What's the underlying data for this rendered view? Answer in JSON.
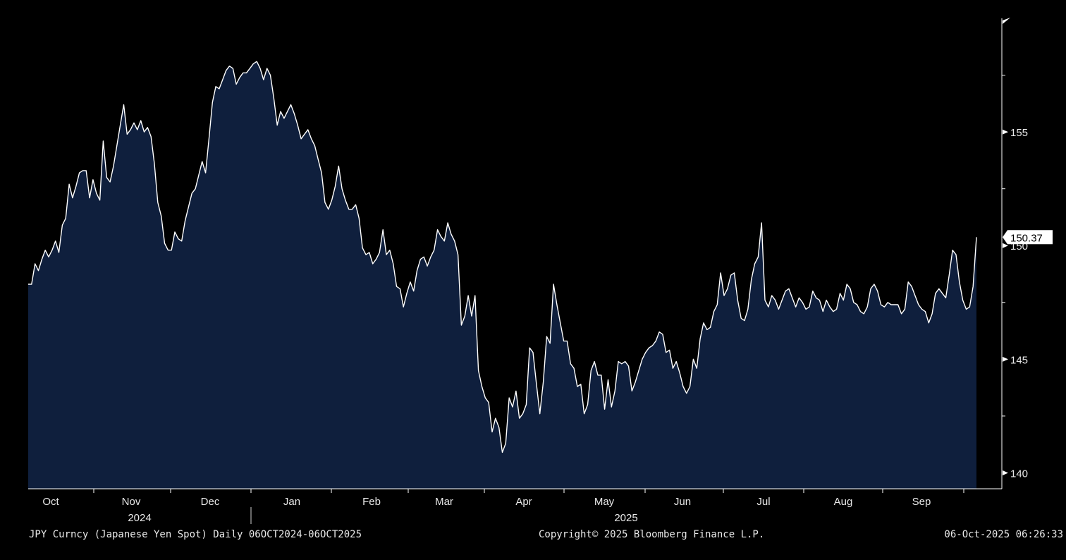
{
  "chart_data": {
    "type": "area",
    "series": [
      {
        "values": [
          148.3,
          148.3,
          149.2,
          148.9,
          149.4,
          149.8,
          149.5,
          149.8,
          150.2,
          149.7,
          150.9,
          151.2,
          152.7,
          152.1,
          152.6,
          153.2,
          153.3,
          153.3,
          152.1,
          152.9,
          152.3,
          152.0,
          154.6,
          153.0,
          152.8,
          153.5,
          154.4,
          155.3,
          156.2,
          154.9,
          155.1,
          155.4,
          155.1,
          155.5,
          155.0,
          155.2,
          154.8,
          153.6,
          151.9,
          151.3,
          150.1,
          149.8,
          149.8,
          150.6,
          150.3,
          150.2,
          151.1,
          151.7,
          152.3,
          152.5,
          153.1,
          153.7,
          153.2,
          154.7,
          156.3,
          157.0,
          156.9,
          157.3,
          157.7,
          157.9,
          157.8,
          157.1,
          157.4,
          157.6,
          157.6,
          157.8,
          158.0,
          158.1,
          157.8,
          157.3,
          157.8,
          157.5,
          156.5,
          155.3,
          155.9,
          155.6,
          155.9,
          156.2,
          155.8,
          155.3,
          154.7,
          154.9,
          155.1,
          154.7,
          154.4,
          153.8,
          153.2,
          151.9,
          151.6,
          152.0,
          152.6,
          153.5,
          152.5,
          152.0,
          151.6,
          151.6,
          151.8,
          151.2,
          149.9,
          149.6,
          149.7,
          149.2,
          149.4,
          149.7,
          150.7,
          149.6,
          149.8,
          149.2,
          148.2,
          148.1,
          147.3,
          147.9,
          148.4,
          148.0,
          148.9,
          149.4,
          149.5,
          149.1,
          149.5,
          149.8,
          150.7,
          150.4,
          150.2,
          151.0,
          150.5,
          150.2,
          149.6,
          146.5,
          146.9,
          147.8,
          146.9,
          147.8,
          144.5,
          143.8,
          143.3,
          143.1,
          141.8,
          142.4,
          142.0,
          140.9,
          141.3,
          143.3,
          142.9,
          143.6,
          142.4,
          142.6,
          143.0,
          145.5,
          145.3,
          143.9,
          142.6,
          144.0,
          146.0,
          145.7,
          148.3,
          147.4,
          146.6,
          145.8,
          145.8,
          144.8,
          144.6,
          143.8,
          143.9,
          142.6,
          143.0,
          144.5,
          144.9,
          144.3,
          144.3,
          142.8,
          144.1,
          142.9,
          143.6,
          144.9,
          144.8,
          144.9,
          144.7,
          143.6,
          144.0,
          144.5,
          145.0,
          145.3,
          145.5,
          145.6,
          145.8,
          146.2,
          146.1,
          145.3,
          145.4,
          144.6,
          144.9,
          144.4,
          143.8,
          143.5,
          143.8,
          145.0,
          144.6,
          145.9,
          146.6,
          146.3,
          146.4,
          147.1,
          147.4,
          148.8,
          147.8,
          148.1,
          148.7,
          148.8,
          147.6,
          146.8,
          146.7,
          147.2,
          148.5,
          149.2,
          149.5,
          151.0,
          147.6,
          147.3,
          147.8,
          147.6,
          147.2,
          147.6,
          148.0,
          148.1,
          147.7,
          147.3,
          147.7,
          147.5,
          147.2,
          147.3,
          148.0,
          147.7,
          147.6,
          147.1,
          147.6,
          147.3,
          147.1,
          147.2,
          147.9,
          147.6,
          148.3,
          148.1,
          147.5,
          147.4,
          147.1,
          147.0,
          147.3,
          148.1,
          148.3,
          148.0,
          147.4,
          147.3,
          147.5,
          147.4,
          147.4,
          147.4,
          147.0,
          147.2,
          148.4,
          148.2,
          147.8,
          147.4,
          147.2,
          147.1,
          146.6,
          147.0,
          147.9,
          148.1,
          147.9,
          147.7,
          148.7,
          149.8,
          149.6,
          148.4,
          147.6,
          147.2,
          147.3,
          148.2,
          150.37
        ]
      }
    ],
    "x_start": "2024-10-06",
    "x_end": "2025-10-06",
    "ylim": [
      139.3,
      160.0
    ],
    "y_ticks": [
      "155",
      "150",
      "145",
      "140"
    ],
    "y_tick_values": [
      155,
      150,
      145,
      140
    ],
    "last_value_label": "150.37",
    "x_month_labels": [
      "Oct",
      "Nov",
      "Dec",
      "Jan",
      "Feb",
      "Mar",
      "Apr",
      "May",
      "Jun",
      "Jul",
      "Aug",
      "Sep"
    ],
    "x_year_labels": [
      "2024",
      "2025"
    ],
    "colors": {
      "background": "#000000",
      "area_fill": "#0f1f3d",
      "line": "#ffffff",
      "axis": "#ffffff"
    }
  },
  "footer": {
    "left": "JPY Curncy (Japanese Yen Spot) Daily 06OCT2024-06OCT2025",
    "center": "Copyright© 2025 Bloomberg Finance L.P.",
    "right": "06-Oct-2025 06:26:33"
  }
}
